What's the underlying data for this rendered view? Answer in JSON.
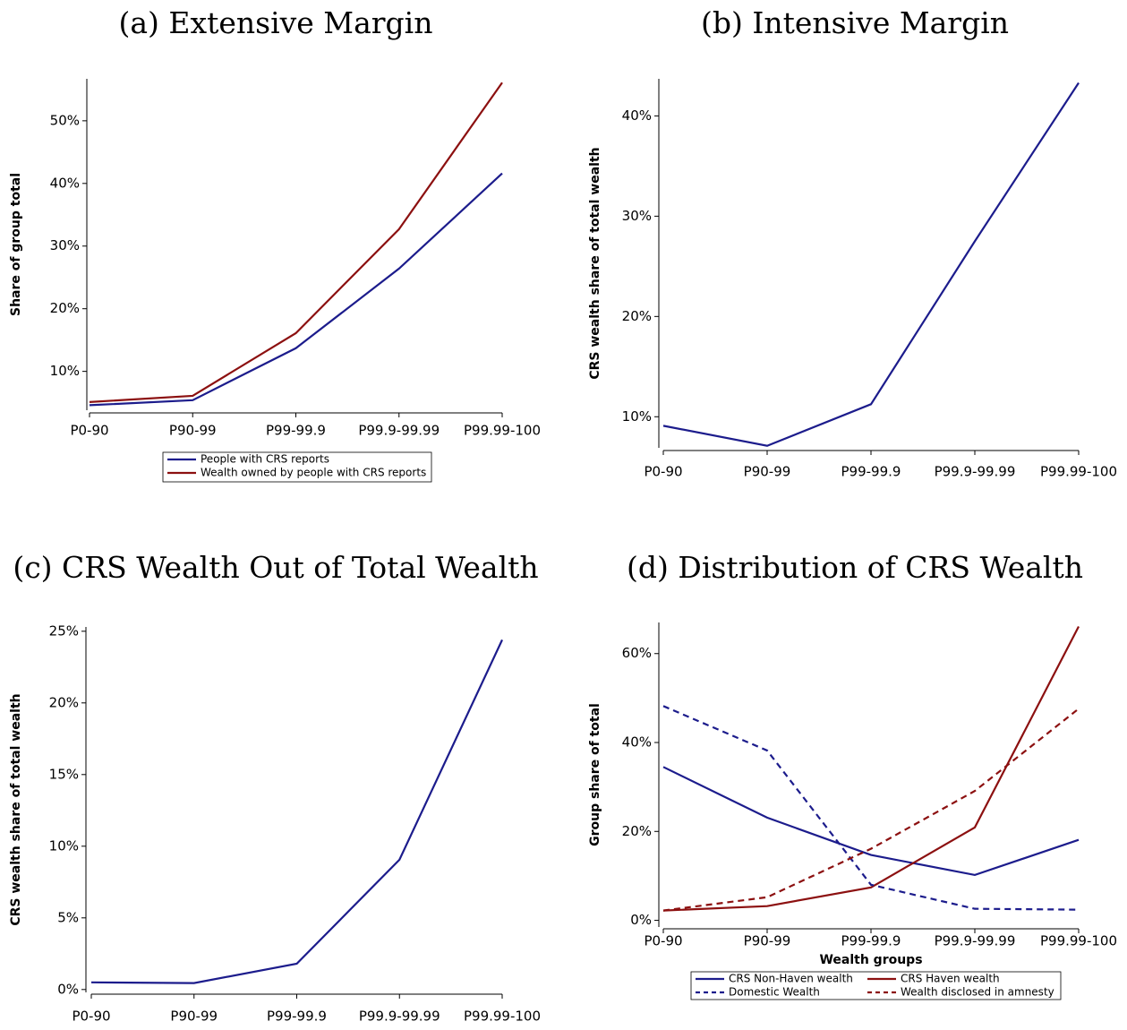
{
  "chart_data": [
    {
      "type": "line",
      "title": "(a) Extensive Margin",
      "ylabel": "Share of group total",
      "categories": [
        "P0-90",
        "P90-99",
        "P99-99.9",
        "P99.9-99.99",
        "P99.99-100"
      ],
      "series": [
        {
          "name": "People with CRS reports",
          "color": "#1c1c8c",
          "dash": false,
          "values": [
            4.6,
            5.4,
            13.7,
            26.4,
            41.6
          ]
        },
        {
          "name": "Wealth owned by people with CRS reports",
          "color": "#8c1010",
          "dash": false,
          "values": [
            5.1,
            6.1,
            16.1,
            32.7,
            56.1
          ]
        }
      ],
      "ylim": [
        3.8,
        56.7
      ],
      "yticks": [
        {
          "value": 10,
          "label": "10%"
        },
        {
          "value": 20,
          "label": "20%"
        },
        {
          "value": 30,
          "label": "30%"
        },
        {
          "value": 40,
          "label": "40%"
        },
        {
          "value": 50,
          "label": "50%"
        }
      ],
      "legend": "bottom"
    },
    {
      "type": "line",
      "title": "(b) Intensive Margin",
      "ylabel": "CRS wealth share of total wealth",
      "categories": [
        "P0-90",
        "P90-99",
        "P99-99.9",
        "P99.9-99.99",
        "P99.99-100"
      ],
      "color": "#1c1c8c",
      "values": [
        9.1,
        7.1,
        11.25,
        27.5,
        43.3
      ],
      "ylim": [
        6.9,
        43.7
      ],
      "yticks": [
        {
          "value": 10,
          "label": "10%"
        },
        {
          "value": 20,
          "label": "20%"
        },
        {
          "value": 30,
          "label": "30%"
        },
        {
          "value": 40,
          "label": "40%"
        }
      ]
    },
    {
      "type": "line",
      "title": "(c) CRS Wealth Out of Total Wealth",
      "ylabel": "CRS wealth share of total wealth",
      "categories": [
        "P0-90",
        "P90-99",
        "P99-99.9",
        "P99.9-99.99",
        "P99.99-100"
      ],
      "color": "#1c1c8c",
      "values": [
        0.5,
        0.45,
        1.8,
        9.06,
        24.4
      ],
      "ylim": [
        -0.2,
        25.3
      ],
      "yticks": [
        {
          "value": 0,
          "label": "0%"
        },
        {
          "value": 5,
          "label": "5%"
        },
        {
          "value": 10,
          "label": "10%"
        },
        {
          "value": 15,
          "label": "15%"
        },
        {
          "value": 20,
          "label": "20%"
        },
        {
          "value": 25,
          "label": "25%"
        }
      ]
    },
    {
      "type": "line",
      "title": "(d) Distribution of CRS Wealth",
      "ylabel": "Group share of total",
      "xlabel": "Wealth groups",
      "categories": [
        "P0-90",
        "P90-99",
        "P99-99.9",
        "P99.9-99.99",
        "P99.99-100"
      ],
      "series": [
        {
          "name": "CRS Non-Haven wealth",
          "color": "#1c1c8c",
          "dash": false,
          "values": [
            34.5,
            23.1,
            14.7,
            10.2,
            18.1
          ]
        },
        {
          "name": "CRS Haven wealth",
          "color": "#8c1010",
          "dash": false,
          "values": [
            2.2,
            3.2,
            7.4,
            20.9,
            66.1
          ]
        },
        {
          "name": "Domestic Wealth",
          "color": "#1c1c8c",
          "dash": true,
          "values": [
            48.2,
            38.2,
            8.0,
            2.6,
            2.4
          ]
        },
        {
          "name": "Wealth disclosed in amnesty",
          "color": "#8c1010",
          "dash": true,
          "values": [
            2.2,
            5.2,
            16.1,
            29.1,
            47.6
          ]
        }
      ],
      "ylim": [
        -1.5,
        67
      ],
      "yticks": [
        {
          "value": 0,
          "label": "0%"
        },
        {
          "value": 20,
          "label": "20%"
        },
        {
          "value": 40,
          "label": "40%"
        },
        {
          "value": 60,
          "label": "60%"
        }
      ],
      "legend": "bottom"
    }
  ]
}
